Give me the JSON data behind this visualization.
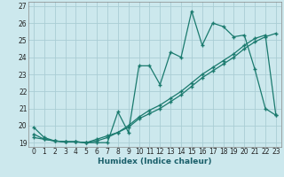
{
  "title": "",
  "xlabel": "Humidex (Indice chaleur)",
  "bg_color": "#cce8ed",
  "grid_color": "#aacdd4",
  "line_color": "#1a7a6e",
  "xlim": [
    -0.5,
    23.5
  ],
  "ylim": [
    18.75,
    27.25
  ],
  "xticks": [
    0,
    1,
    2,
    3,
    4,
    5,
    6,
    7,
    8,
    9,
    10,
    11,
    12,
    13,
    14,
    15,
    16,
    17,
    18,
    19,
    20,
    21,
    22,
    23
  ],
  "yticks": [
    19,
    20,
    21,
    22,
    23,
    24,
    25,
    26,
    27
  ],
  "line1_x": [
    0,
    1,
    2,
    3,
    4,
    5,
    6,
    7,
    8,
    9,
    10,
    11,
    12,
    13,
    14,
    15,
    16,
    17,
    18,
    19,
    20,
    21,
    22,
    23
  ],
  "line1_y": [
    19.9,
    19.3,
    19.1,
    19.05,
    19.05,
    19.0,
    19.0,
    19.0,
    20.8,
    19.6,
    23.5,
    23.5,
    22.4,
    24.3,
    24.0,
    26.7,
    24.7,
    26.0,
    25.8,
    25.2,
    25.3,
    23.3,
    21.0,
    20.6
  ],
  "line2_x": [
    0,
    1,
    2,
    3,
    4,
    5,
    6,
    7,
    8,
    9,
    10,
    11,
    12,
    13,
    14,
    15,
    16,
    17,
    18,
    19,
    20,
    21,
    22,
    23
  ],
  "line2_y": [
    19.5,
    19.2,
    19.1,
    19.05,
    19.05,
    19.0,
    19.2,
    19.4,
    19.6,
    19.9,
    20.4,
    20.7,
    21.0,
    21.4,
    21.8,
    22.3,
    22.8,
    23.2,
    23.6,
    24.0,
    24.5,
    24.9,
    25.2,
    25.4
  ],
  "line3_x": [
    0,
    1,
    2,
    3,
    4,
    5,
    6,
    7,
    8,
    9,
    10,
    11,
    12,
    13,
    14,
    15,
    16,
    17,
    18,
    19,
    20,
    21,
    22,
    23
  ],
  "line3_y": [
    19.3,
    19.2,
    19.1,
    19.05,
    19.05,
    19.0,
    19.1,
    19.3,
    19.6,
    20.0,
    20.5,
    20.9,
    21.2,
    21.6,
    22.0,
    22.5,
    23.0,
    23.4,
    23.8,
    24.2,
    24.7,
    25.1,
    25.3,
    20.6
  ]
}
